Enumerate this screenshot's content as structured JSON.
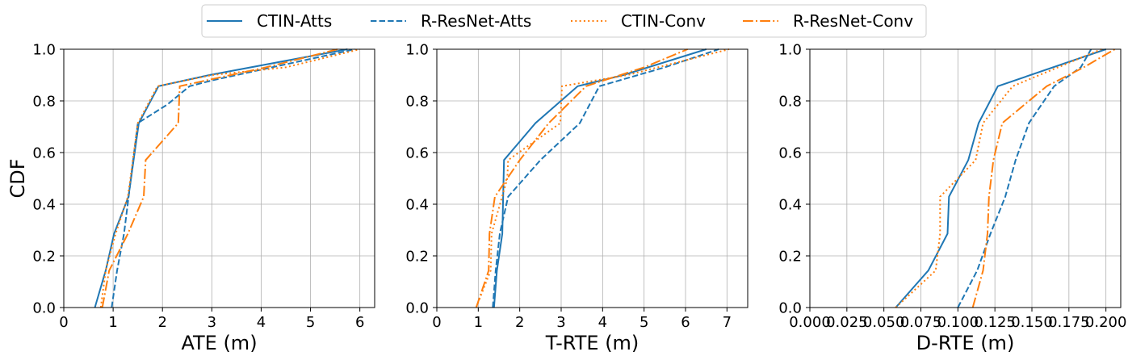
{
  "legend": {
    "placement": "top-center",
    "entries": [
      "CTIN-Atts",
      "R-ResNet-Atts",
      "CTIN-Conv",
      "R-ResNet-Conv"
    ]
  },
  "colors": {
    "blue": "#1f77b4",
    "orange": "#ff7f0e",
    "grid": "#b0b0b0"
  },
  "chart_data": [
    {
      "type": "line",
      "xlabel": "ATE (m)",
      "ylabel": "CDF",
      "xlim": [
        0,
        6.3
      ],
      "ylim": [
        0,
        1
      ],
      "grid": true,
      "xticks": [
        0,
        1,
        2,
        3,
        4,
        5,
        6
      ],
      "xtick_labels": [
        "0",
        "1",
        "2",
        "3",
        "4",
        "5",
        "6"
      ],
      "yticks": [
        0,
        0.2,
        0.4,
        0.6,
        0.8,
        1.0
      ],
      "ytick_labels": [
        "0.0",
        "0.2",
        "0.4",
        "0.6",
        "0.8",
        "1.0"
      ],
      "series": [
        {
          "name": "CTIN-Atts",
          "style": "solid",
          "color": "#1f77b4",
          "x": [
            0.63,
            0.85,
            1.02,
            1.31,
            1.52,
            1.92,
            2.95,
            5.75
          ],
          "y": [
            0,
            0.143,
            0.286,
            0.429,
            0.714,
            0.857,
            0.9,
            1.0
          ]
        },
        {
          "name": "R-ResNet-Atts",
          "style": "dashed",
          "color": "#1f77b4",
          "x": [
            0.97,
            1.08,
            1.22,
            1.36,
            1.5,
            2.1,
            2.55,
            3.02,
            5.9
          ],
          "y": [
            0,
            0.143,
            0.286,
            0.5,
            0.714,
            0.786,
            0.857,
            0.88,
            1.0
          ]
        },
        {
          "name": "CTIN-Conv",
          "style": "dotted",
          "color": "#ff7f0e",
          "x": [
            0.75,
            0.85,
            1.05,
            1.3,
            1.5,
            1.9,
            3.0,
            4.5,
            6.0
          ],
          "y": [
            0,
            0.143,
            0.286,
            0.429,
            0.714,
            0.857,
            0.9,
            0.93,
            1.0
          ]
        },
        {
          "name": "R-ResNet-Conv",
          "style": "dashdot",
          "color": "#ff7f0e",
          "x": [
            0.78,
            0.92,
            1.3,
            1.62,
            1.66,
            2.32,
            2.35,
            4.1,
            5.55
          ],
          "y": [
            0,
            0.143,
            0.286,
            0.429,
            0.571,
            0.714,
            0.857,
            0.93,
            1.0
          ]
        }
      ]
    },
    {
      "type": "line",
      "xlabel": "T-RTE (m)",
      "ylabel": "",
      "xlim": [
        0,
        7.5
      ],
      "ylim": [
        0,
        1
      ],
      "grid": true,
      "xticks": [
        0,
        1,
        2,
        3,
        4,
        5,
        6,
        7
      ],
      "xtick_labels": [
        "0",
        "1",
        "2",
        "3",
        "4",
        "5",
        "6",
        "7"
      ],
      "yticks": [
        0,
        0.2,
        0.4,
        0.6,
        0.8,
        1.0
      ],
      "ytick_labels": [
        "0.0",
        "0.2",
        "0.4",
        "0.6",
        "0.8",
        "1.0"
      ],
      "series": [
        {
          "name": "CTIN-Atts",
          "style": "solid",
          "color": "#1f77b4",
          "x": [
            1.38,
            1.45,
            1.58,
            1.62,
            2.38,
            3.4,
            4.5,
            6.5
          ],
          "y": [
            0,
            0.143,
            0.286,
            0.571,
            0.714,
            0.857,
            0.9,
            1.0
          ]
        },
        {
          "name": "R-ResNet-Atts",
          "style": "dashed",
          "color": "#1f77b4",
          "x": [
            1.35,
            1.42,
            1.52,
            1.72,
            2.5,
            3.45,
            3.92,
            5.5,
            6.8
          ],
          "y": [
            0,
            0.143,
            0.286,
            0.429,
            0.571,
            0.714,
            0.857,
            0.93,
            1.0
          ]
        },
        {
          "name": "CTIN-Conv",
          "style": "dotted",
          "color": "#ff7f0e",
          "x": [
            0.95,
            1.3,
            1.32,
            1.7,
            1.72,
            2.98,
            3.02,
            4.6,
            7.05
          ],
          "y": [
            0,
            0.143,
            0.286,
            0.5,
            0.571,
            0.714,
            0.857,
            0.9,
            1.0
          ]
        },
        {
          "name": "R-ResNet-Conv",
          "style": "dashdot",
          "color": "#ff7f0e",
          "x": [
            0.95,
            1.25,
            1.27,
            1.4,
            2.0,
            2.7,
            3.6,
            5.0,
            6.05
          ],
          "y": [
            0,
            0.143,
            0.286,
            0.429,
            0.571,
            0.714,
            0.857,
            0.93,
            1.0
          ]
        }
      ]
    },
    {
      "type": "line",
      "xlabel": "D-RTE (m)",
      "ylabel": "",
      "xlim": [
        0,
        0.21
      ],
      "ylim": [
        0,
        1
      ],
      "grid": true,
      "xticks": [
        0,
        0.025,
        0.05,
        0.075,
        0.1,
        0.125,
        0.15,
        0.175,
        0.2
      ],
      "xtick_labels": [
        "0.000",
        "0.025",
        "0.050",
        "0.075",
        "0.100",
        "0.125",
        "0.150",
        "0.175",
        "0.200"
      ],
      "yticks": [
        0,
        0.2,
        0.4,
        0.6,
        0.8,
        1.0
      ],
      "ytick_labels": [
        "0.0",
        "0.2",
        "0.4",
        "0.6",
        "0.8",
        "1.0"
      ],
      "series": [
        {
          "name": "CTIN-Atts",
          "style": "solid",
          "color": "#1f77b4",
          "x": [
            0.058,
            0.08,
            0.093,
            0.094,
            0.107,
            0.114,
            0.127,
            0.2
          ],
          "y": [
            0,
            0.143,
            0.286,
            0.429,
            0.571,
            0.714,
            0.857,
            1.0
          ]
        },
        {
          "name": "R-ResNet-Atts",
          "style": "dashed",
          "color": "#1f77b4",
          "x": [
            0.1,
            0.113,
            0.122,
            0.132,
            0.139,
            0.148,
            0.165,
            0.183,
            0.19
          ],
          "y": [
            0,
            0.143,
            0.286,
            0.429,
            0.571,
            0.714,
            0.857,
            0.93,
            1.0
          ]
        },
        {
          "name": "CTIN-Conv",
          "style": "dotted",
          "color": "#ff7f0e",
          "x": [
            0.058,
            0.085,
            0.088,
            0.088,
            0.112,
            0.117,
            0.137,
            0.197
          ],
          "y": [
            0,
            0.143,
            0.286,
            0.429,
            0.571,
            0.714,
            0.857,
            1.0
          ]
        },
        {
          "name": "R-ResNet-Conv",
          "style": "dashdot",
          "color": "#ff7f0e",
          "x": [
            0.11,
            0.117,
            0.12,
            0.121,
            0.124,
            0.13,
            0.16,
            0.185,
            0.206
          ],
          "y": [
            0,
            0.143,
            0.286,
            0.429,
            0.571,
            0.714,
            0.857,
            0.93,
            1.0
          ]
        }
      ]
    }
  ]
}
